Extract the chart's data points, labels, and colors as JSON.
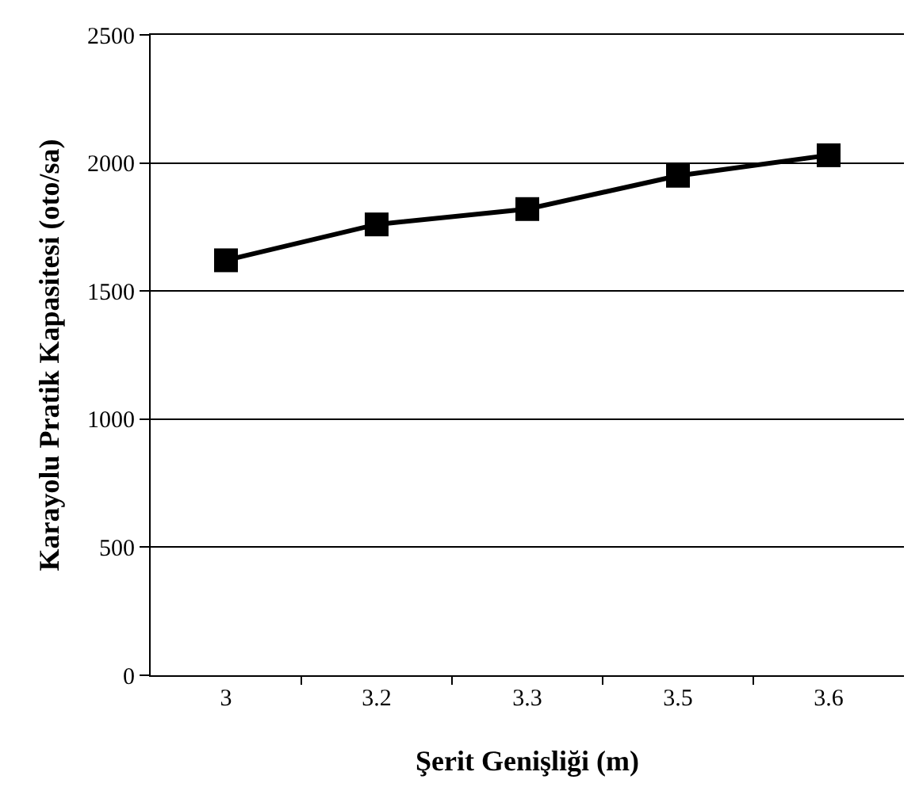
{
  "chart_data": {
    "type": "line",
    "xlabel": "Şerit Genişliği (m)",
    "ylabel": "Karayolu Pratik Kapasitesi (oto/sa)",
    "categories": [
      "3",
      "3.2",
      "3.3",
      "3.5",
      "3.6"
    ],
    "series": [
      {
        "color": "#000000",
        "values": [
          1620,
          1760,
          1820,
          1950,
          2030
        ]
      }
    ],
    "ylim": [
      0,
      2500
    ],
    "yticks": [
      0,
      500,
      1000,
      1500,
      2000,
      2500
    ],
    "grid": "y",
    "marker": "square",
    "line_style": "solid"
  }
}
